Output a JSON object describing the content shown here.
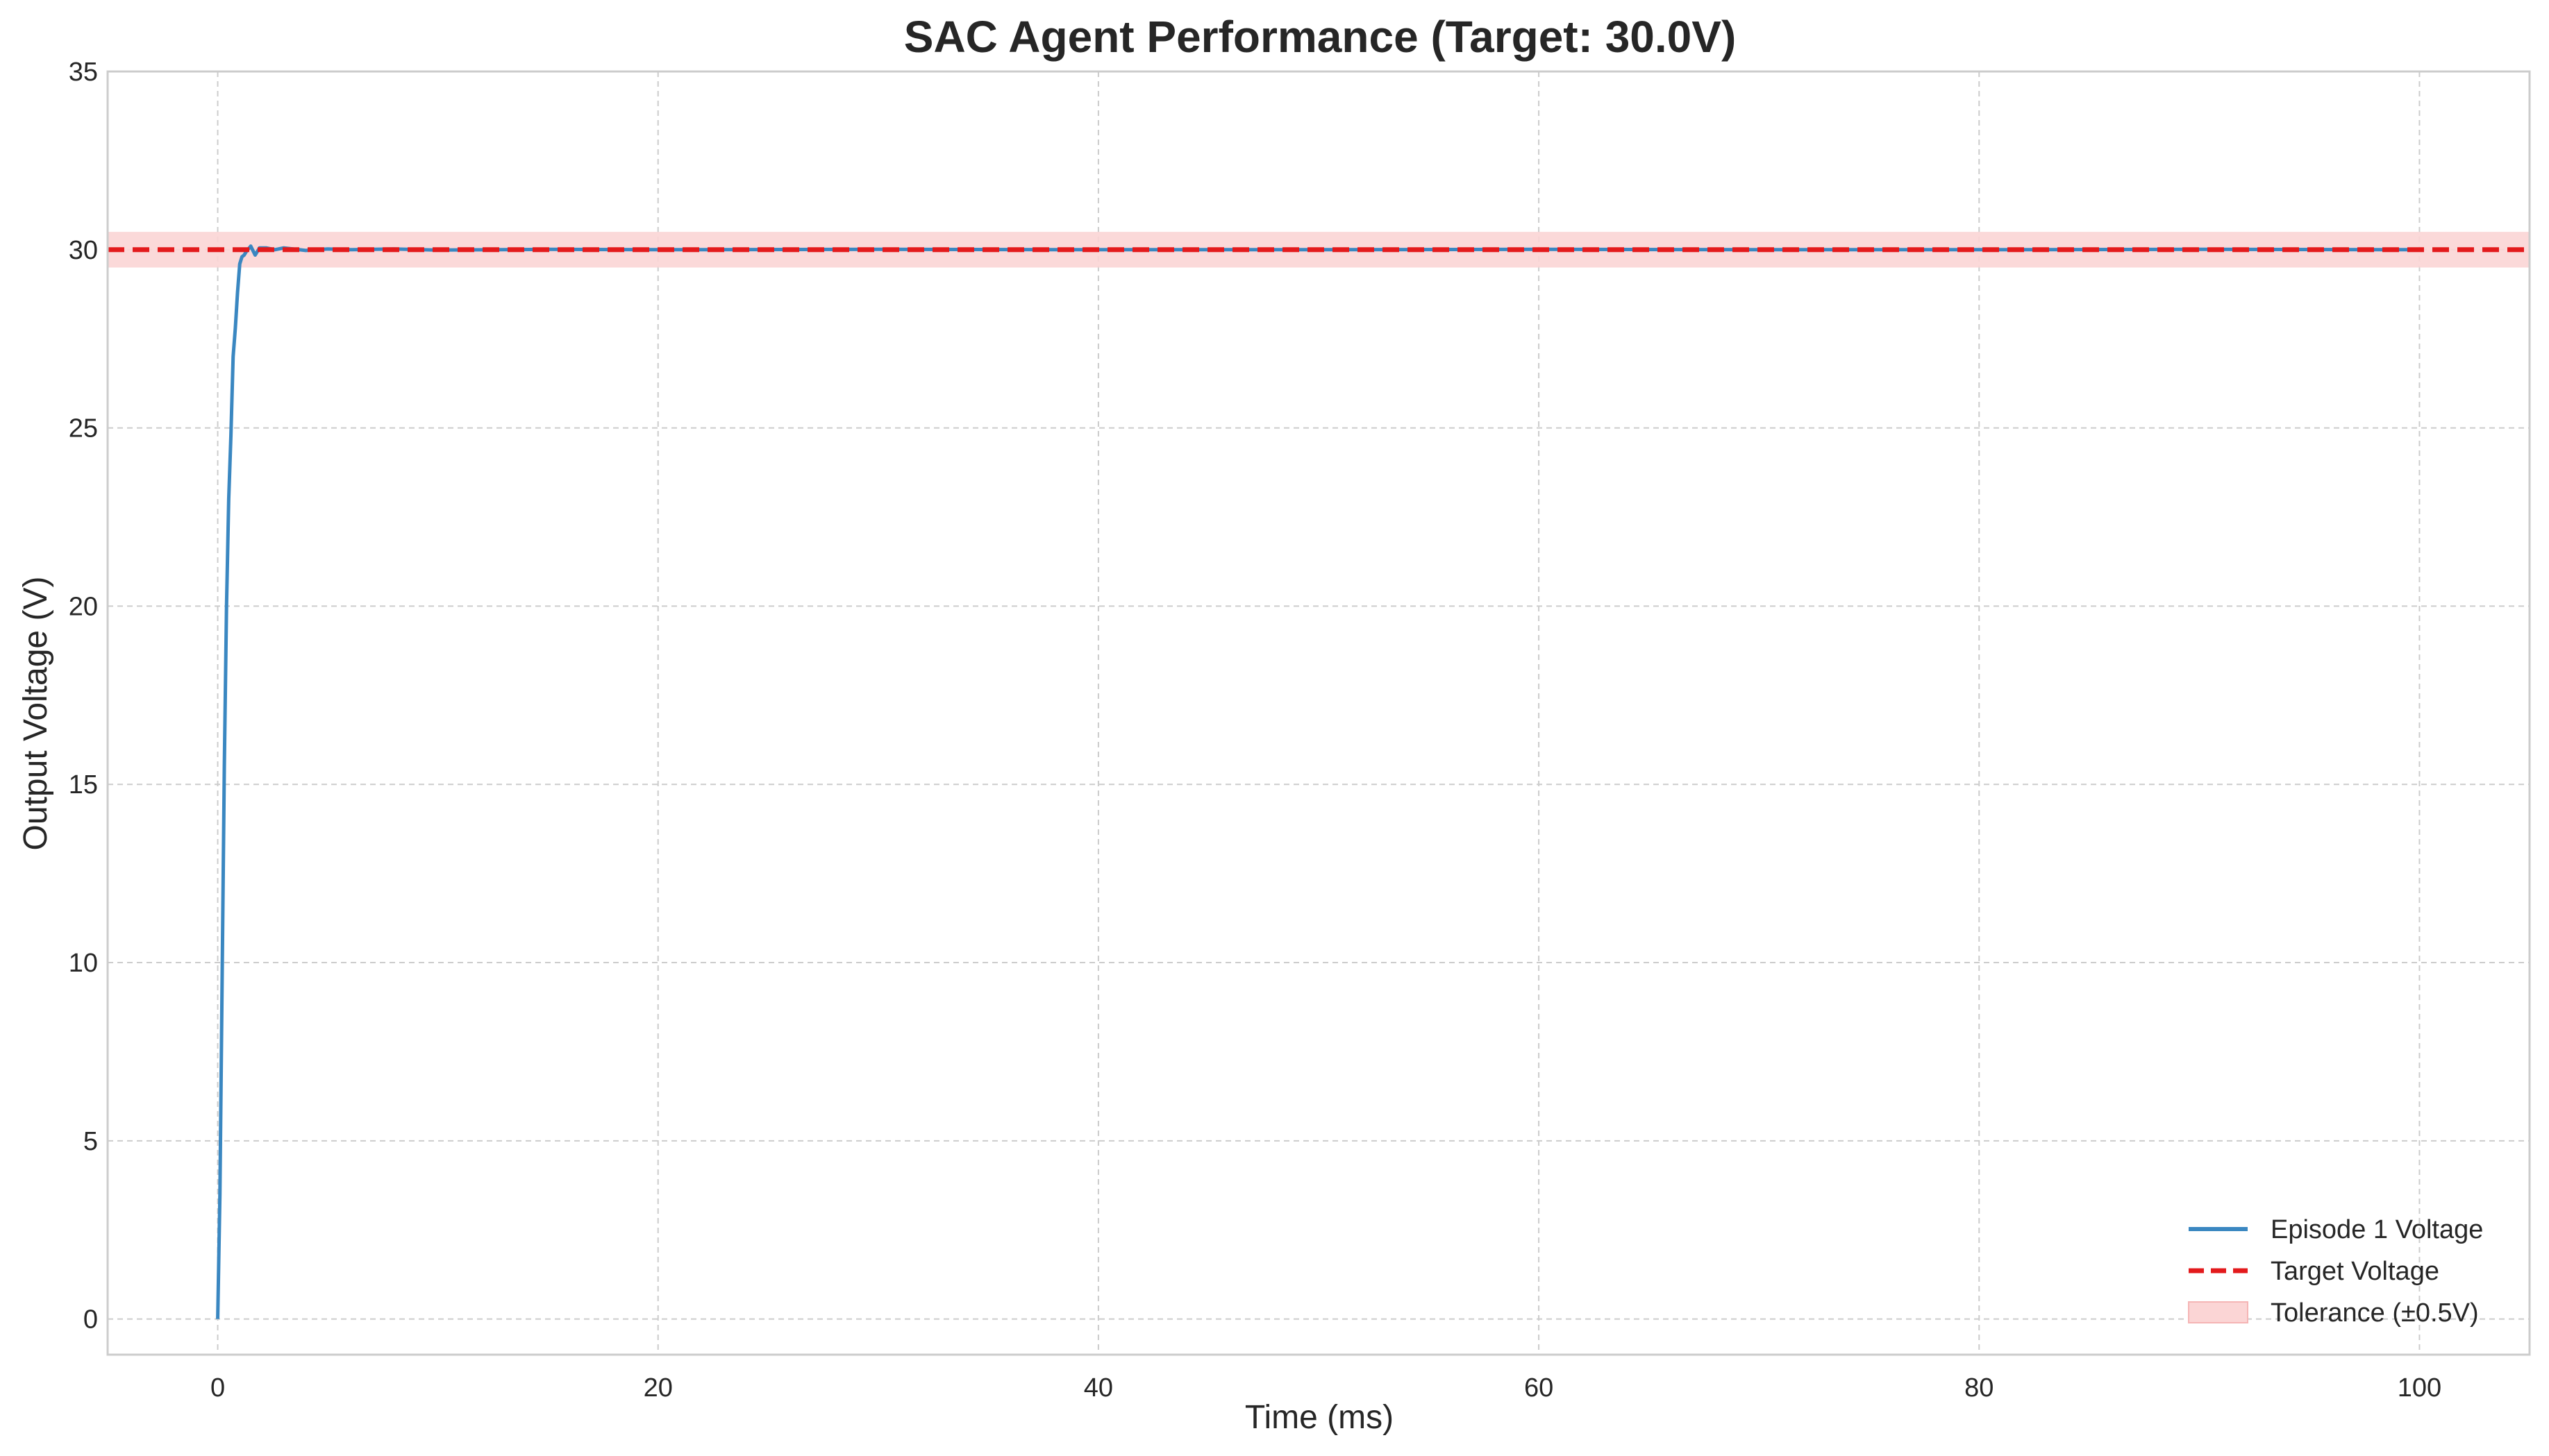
{
  "chart_data": {
    "type": "line",
    "title": "SAC Agent Performance (Target: 30.0V)",
    "xlabel": "Time (ms)",
    "ylabel": "Output Voltage (V)",
    "xlim": [
      -5,
      105
    ],
    "ylim": [
      -1,
      35
    ],
    "x_ticks": [
      0,
      20,
      40,
      60,
      80,
      100
    ],
    "y_ticks": [
      0,
      5,
      10,
      15,
      20,
      25,
      30,
      35
    ],
    "grid": true,
    "legend_position": "bottom-right",
    "target": 30.0,
    "tolerance": 0.5,
    "series": [
      {
        "name": "Episode 1 Voltage",
        "color": "#3a87c1",
        "style": "solid",
        "x": [
          0,
          0.1,
          0.2,
          0.3,
          0.4,
          0.5,
          0.6,
          0.7,
          0.8,
          0.9,
          1.0,
          1.1,
          1.2,
          1.3,
          1.5,
          1.7,
          1.9,
          2.2,
          2.6,
          3.0,
          4,
          5,
          6,
          8,
          10,
          15,
          20,
          30,
          40,
          50,
          60,
          70,
          80,
          90,
          100
        ],
        "y": [
          0,
          3.5,
          9.5,
          15.5,
          20,
          23,
          24.8,
          27,
          27.8,
          28.8,
          29.6,
          29.8,
          29.85,
          29.95,
          30.1,
          29.85,
          30.05,
          30.05,
          30.0,
          30.05,
          29.98,
          30.02,
          30.0,
          30.02,
          29.99,
          30.01,
          30.0,
          30.01,
          30.0,
          30.0,
          30.01,
          30.0,
          30.0,
          30.01,
          30.0
        ]
      },
      {
        "name": "Target Voltage",
        "color": "#e31a1c",
        "style": "dashed",
        "x": [
          -5,
          105
        ],
        "y": [
          30,
          30
        ]
      }
    ],
    "bands": [
      {
        "name": "Tolerance (±0.5V)",
        "color": "#fbd5d5",
        "y_from": 29.5,
        "y_to": 30.5
      }
    ]
  }
}
